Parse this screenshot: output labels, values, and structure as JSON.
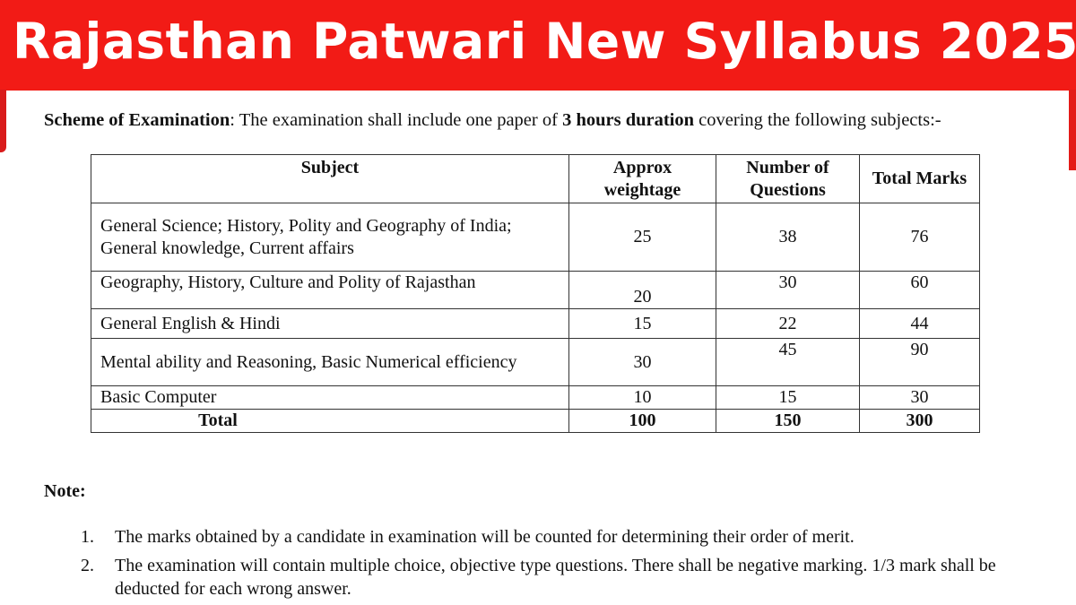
{
  "banner": {
    "title": "Rajasthan Patwari New Syllabus 2025",
    "color": "#f21b16"
  },
  "scheme": {
    "label": "Scheme of Examination",
    "text1": ":  The  examination shall include one paper of ",
    "bold": "3 hours duration",
    "text2": " covering the following subjects:-"
  },
  "table": {
    "headers": [
      "Subject",
      "Approx weightage",
      "Number of Questions",
      "Total Marks"
    ],
    "rows": [
      {
        "subject": "General Science; History, Polity and Geography of India; General knowledge,  Current affairs",
        "weightage": "25",
        "questions": "38",
        "marks": "76"
      },
      {
        "subject": "Geography, History, Culture and Polity of Rajasthan",
        "weightage": "20",
        "questions": "30",
        "marks": "60"
      },
      {
        "subject": "General English & Hindi",
        "weightage": "15",
        "questions": "22",
        "marks": "44"
      },
      {
        "subject": "Mental ability and Reasoning, Basic Numerical efficiency",
        "weightage": "30",
        "questions": "45",
        "marks": "90"
      },
      {
        "subject": "Basic Computer",
        "weightage": "10",
        "questions": "15",
        "marks": "30"
      }
    ],
    "total": {
      "label": "Total",
      "weightage": "100",
      "questions": "150",
      "marks": "300"
    }
  },
  "note": {
    "heading": "Note:",
    "items": [
      {
        "num": "1.",
        "text": "The marks obtained by a candidate in examination will be counted for determining their order of merit."
      },
      {
        "num": "2.",
        "text": "The examination will contain multiple choice, objective type questions. There shall be negative marking. 1/3 mark shall be deducted for each wrong answer."
      }
    ]
  }
}
